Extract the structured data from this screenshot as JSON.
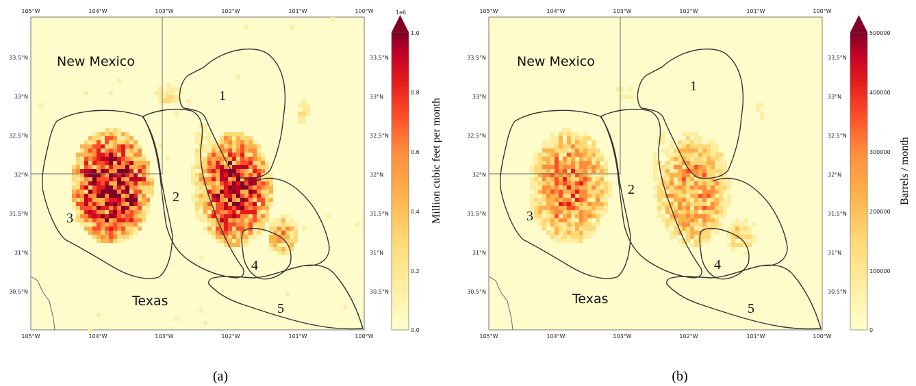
{
  "panels": [
    {
      "id": "a",
      "caption": "(a)",
      "state_labels": [
        "New Mexico",
        "Texas"
      ],
      "region_labels": [
        "1",
        "2",
        "3",
        "4",
        "5"
      ],
      "x_ticks": [
        "105°W",
        "104°W",
        "103°W",
        "102°W",
        "101°W",
        "100°W"
      ],
      "y_ticks_left": [
        "33.5°N",
        "33°N",
        "32.5°N",
        "32°N",
        "31.5°N",
        "31°N",
        "30.5°N"
      ],
      "y_ticks_right": [
        "33.5°N",
        "33°N",
        "32.5°N",
        "32°N",
        "31.5°N",
        "31°N",
        "30.5°N"
      ],
      "colorbar": {
        "title": "Million cubic feet per month",
        "exponent": "1e6",
        "ticks": [
          "0.0",
          "0.2",
          "0.4",
          "0.6",
          "0.8",
          "1.0"
        ],
        "extend": "max"
      },
      "intensity": 1.0
    },
    {
      "id": "b",
      "caption": "(b)",
      "state_labels": [
        "New Mexico",
        "Texas"
      ],
      "region_labels": [
        "1",
        "2",
        "3",
        "4",
        "5"
      ],
      "x_ticks": [
        "105°W",
        "104°W",
        "103°W",
        "102°W",
        "101°W",
        "100°W"
      ],
      "y_ticks_left": [
        "33.5°N",
        "33°N",
        "32.5°N",
        "32°N",
        "31.5°N",
        "31°N",
        "30.5°N"
      ],
      "y_ticks_right": [
        "33.5°N",
        "33°N",
        "32.5°N",
        "32°N",
        "31.5°N",
        "31°N",
        "30.5°N"
      ],
      "colorbar": {
        "title": "Barrels / month",
        "exponent": "",
        "ticks": [
          "0",
          "100000",
          "200000",
          "300000",
          "400000",
          "500000"
        ],
        "extend": "max"
      },
      "intensity": 0.6
    }
  ],
  "colors": {
    "map_background": "#fffccc",
    "colormap": [
      "#ffffcc",
      "#ffeda0",
      "#fed976",
      "#feb24c",
      "#fd8d3c",
      "#fc4e2a",
      "#e31a1c",
      "#bd0026",
      "#800026"
    ],
    "boundary": "#333333"
  }
}
